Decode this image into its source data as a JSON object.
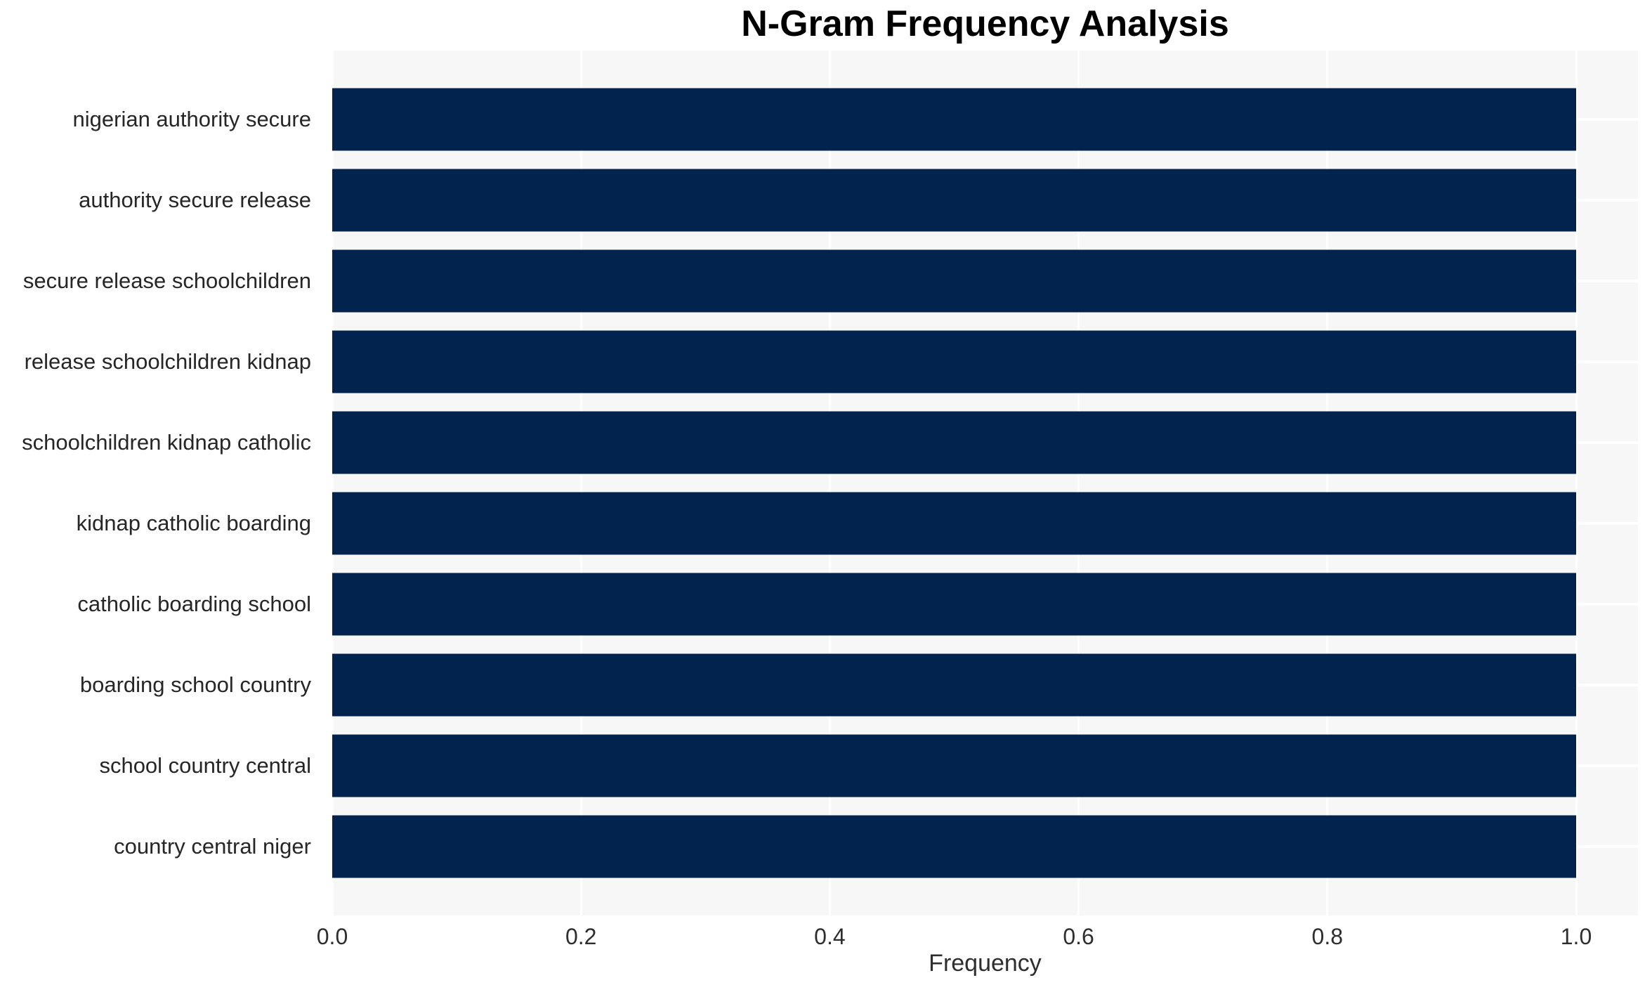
{
  "chart_data": {
    "type": "bar",
    "orientation": "horizontal",
    "title": "N-Gram Frequency Analysis",
    "xlabel": "Frequency",
    "ylabel": "",
    "categories": [
      "nigerian authority secure",
      "authority secure release",
      "secure release schoolchildren",
      "release schoolchildren kidnap",
      "schoolchildren kidnap catholic",
      "kidnap catholic boarding",
      "catholic boarding school",
      "boarding school country",
      "school country central",
      "country central niger"
    ],
    "values": [
      1.0,
      1.0,
      1.0,
      1.0,
      1.0,
      1.0,
      1.0,
      1.0,
      1.0,
      1.0
    ],
    "xticks": [
      "0.0",
      "0.2",
      "0.4",
      "0.6",
      "0.8",
      "1.0"
    ],
    "xtick_values": [
      0.0,
      0.2,
      0.4,
      0.6,
      0.8,
      1.0
    ],
    "xlim": [
      0.0,
      1.05
    ],
    "grid": true,
    "legend": false
  },
  "style": {
    "bar_color": "#02234d",
    "plot_bg": "#f7f7f8",
    "grid_color": "#ffffff",
    "title_color": "#000000",
    "label_color": "#262626",
    "tick_color": "#2e2e2e"
  }
}
